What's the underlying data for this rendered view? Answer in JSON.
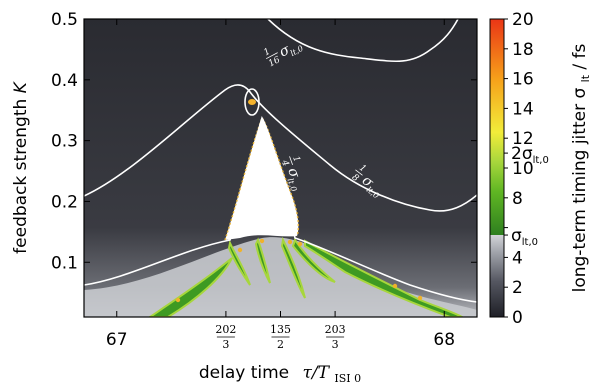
{
  "chart_data": {
    "type": "heatmap",
    "title": "",
    "xlabel": "delay time",
    "xlabel_math": "τ/T",
    "xlabel_sub": "ISI 0",
    "ylabel": "feedback strength",
    "ylabel_var": "K",
    "xlim": [
      66.9,
      68.1
    ],
    "ylim": [
      0.01,
      0.5
    ],
    "x_ticks": [
      {
        "value": 67,
        "label": "67"
      },
      {
        "value": 68,
        "label": "68"
      }
    ],
    "x_fraction_ticks": [
      {
        "value": 67.3333,
        "num": "202",
        "den": "3"
      },
      {
        "value": 67.5,
        "num": "135",
        "den": "2"
      },
      {
        "value": 67.6667,
        "num": "203",
        "den": "3"
      }
    ],
    "y_ticks": [
      0.1,
      0.2,
      0.3,
      0.4,
      0.5
    ],
    "y_tick_labels": [
      "0.1",
      "0.2",
      "0.3",
      "0.4",
      "0.5"
    ],
    "colorbar": {
      "label": "long-term timing jitter σ",
      "label_sub": "lt",
      "label_unit": " / fs",
      "range": [
        0,
        20
      ],
      "ticks": [
        0,
        2,
        4,
        6,
        8,
        10,
        12,
        14,
        16,
        18,
        20
      ],
      "tick_labels": [
        "0",
        "2",
        "4",
        "",
        "8",
        "10",
        "12",
        "14",
        "16",
        "18",
        "20"
      ],
      "extra_labels": [
        {
          "value": 5.5,
          "text": "σ",
          "sub": "lt,0"
        },
        {
          "value": 11.0,
          "text": "2σ",
          "sub": "lt,0"
        }
      ],
      "colors": [
        "#1e1f26",
        "#555761",
        "#a3a6ad",
        "#d3d4d8",
        "#2f7f1f",
        "#5fb623",
        "#a7d63c",
        "#f2ec3a",
        "#f6a01a",
        "#ea3516"
      ]
    },
    "contours": [
      {
        "label_num": "1",
        "label_den": "16",
        "level": "σlt,0/16"
      },
      {
        "label_num": "1",
        "label_den": "8",
        "level": "σlt,0/8"
      },
      {
        "label_num": "1",
        "label_den": "4",
        "level": "σlt,0/4"
      }
    ],
    "contour_label_text": "σ",
    "contour_label_sub": "lt,0"
  }
}
